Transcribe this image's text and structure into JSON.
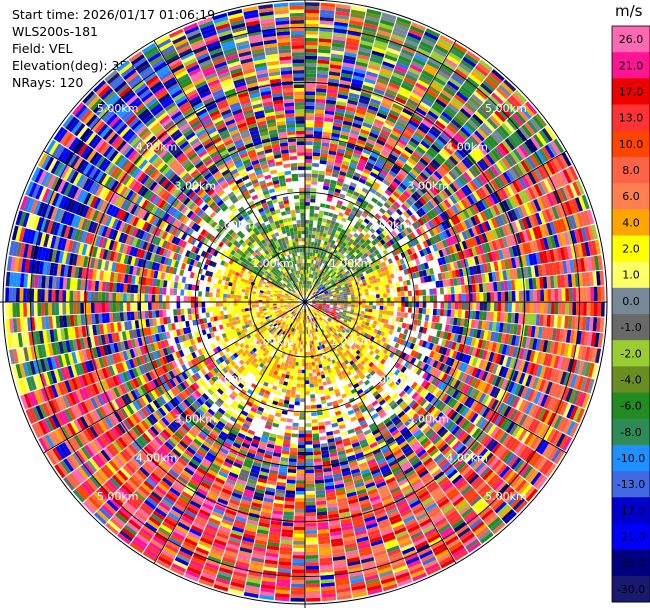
{
  "header": {
    "start_time": "Start time: 2026/01/17 01:06:19",
    "instrument": "WLS200s-181",
    "field": "Field: VEL",
    "elevation": "Elevation(deg): 35.00",
    "nrays": "NRays: 120"
  },
  "chart_data": {
    "type": "heatmap",
    "projection": "polar-ppi",
    "field": "VEL",
    "elevation_deg": 35.0,
    "n_rays": 120,
    "range_max_km": 5.5,
    "range_rings_km": [
      1.0,
      2.0,
      3.0,
      4.0,
      5.0
    ],
    "range_ring_labels": [
      "1.00km",
      "2.00km",
      "3.00km",
      "4.00km",
      "5.00km"
    ],
    "spokes_deg": [
      0,
      30,
      60,
      90,
      120,
      150,
      180,
      210,
      240,
      270,
      300,
      330
    ],
    "colorbar": {
      "unit": "m/s",
      "ticks": [
        "26.0",
        "21.0",
        "17.0",
        "13.0",
        "10.0",
        "8.0",
        "6.0",
        "4.0",
        "2.0",
        "1.0",
        "0.0",
        "-1.0",
        "-2.0",
        "-4.0",
        "-6.0",
        "-8.0",
        "-10.0",
        "-13.0",
        "-17.0",
        "-21.0",
        "-26.0",
        "-30.0"
      ],
      "colors": [
        "#ff69b4",
        "#ff1493",
        "#ee0000",
        "#ff3333",
        "#ff4500",
        "#ff6347",
        "#ff7f50",
        "#ffa500",
        "#ffff00",
        "#ffff66",
        "#778899",
        "#696969",
        "#9acd32",
        "#6b8e23",
        "#228b22",
        "#2e8b57",
        "#1e90ff",
        "#4169e1",
        "#0000cd",
        "#0000ff",
        "#000080",
        "#191970"
      ]
    },
    "pattern": {
      "description_regions": [
        {
          "az_from": 225,
          "az_to": 45,
          "near_km": [
            0,
            1.6
          ],
          "dominant": "yellow/orange (approaching, +2 to +6 m/s)"
        },
        {
          "az_from": 300,
          "az_to": 60,
          "near_km": [
            0.3,
            2.0
          ],
          "dominant": "green/grey (receding, -1 to -8 m/s)"
        },
        {
          "az_from": 90,
          "az_to": 110,
          "near_km": [
            0,
            0.6
          ],
          "dominant": "red/pink (+13 to +21 m/s)"
        },
        {
          "az_from": 150,
          "az_to": 240,
          "near_km": [
            3.5,
            5.5
          ],
          "dominant": "orange/red (+8 to +21 m/s)"
        }
      ]
    }
  }
}
